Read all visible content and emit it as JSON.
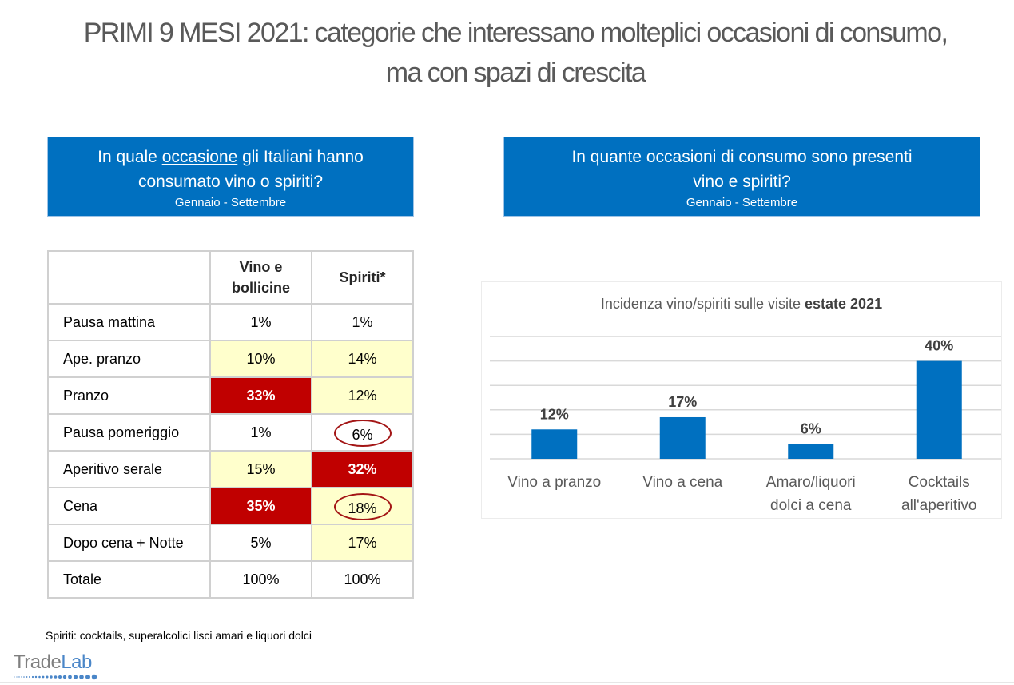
{
  "page": {
    "title_line1": "PRIMI 9 MESI 2021: categorie che interessano molteplici occasioni di consumo,",
    "title_line2": "ma con spazi di crescita"
  },
  "left_panel": {
    "question_pre": "In quale ",
    "question_underlined": "occasione",
    "question_post": " gli Italiani hanno",
    "question_line2": "consumato vino o spiriti?",
    "period": "Gennaio - Settembre"
  },
  "right_panel": {
    "question_line1": "In quante occasioni di consumo sono presenti",
    "question_line2": "vino e spiriti?",
    "period": "Gennaio - Settembre"
  },
  "table": {
    "headers": [
      "",
      "Vino e bollicine",
      "Spiriti*"
    ],
    "header_wine_line1": "Vino e",
    "header_wine_line2": "bollicine",
    "header_spirits": "Spiriti*",
    "rows": [
      {
        "label": "Pausa mattina",
        "wine": "1%",
        "spirits": "1%",
        "wine_level": "none",
        "spirits_level": "none",
        "spirits_circled": false
      },
      {
        "label": "Ape. pranzo",
        "wine": "10%",
        "spirits": "14%",
        "wine_level": "mid",
        "spirits_level": "mid",
        "spirits_circled": false
      },
      {
        "label": "Pranzo",
        "wine": "33%",
        "spirits": "12%",
        "wine_level": "high",
        "spirits_level": "mid",
        "spirits_circled": false
      },
      {
        "label": "Pausa pomeriggio",
        "wine": "1%",
        "spirits": "6%",
        "wine_level": "none",
        "spirits_level": "none",
        "spirits_circled": true
      },
      {
        "label": "Aperitivo serale",
        "wine": "15%",
        "spirits": "32%",
        "wine_level": "mid",
        "spirits_level": "high",
        "spirits_circled": false
      },
      {
        "label": "Cena",
        "wine": "35%",
        "spirits": "18%",
        "wine_level": "high",
        "spirits_level": "mid",
        "spirits_circled": true
      },
      {
        "label": "Dopo cena + Notte",
        "wine": "5%",
        "spirits": "17%",
        "wine_level": "none",
        "spirits_level": "mid",
        "spirits_circled": false
      },
      {
        "label": "Totale",
        "wine": "100%",
        "spirits": "100%",
        "wine_level": "none",
        "spirits_level": "none",
        "spirits_circled": false
      }
    ],
    "colors": {
      "high": "#c00000",
      "mid": "#ffffcc",
      "circle": "#a31515"
    }
  },
  "footnote": "Spiriti: cocktails, superalcolici lisci amari e liquori dolci",
  "logo": {
    "part1": "Trade",
    "part2": "Lab"
  },
  "chart_data": {
    "type": "bar",
    "title_regular": "Incidenza vino/spiriti sulle visite ",
    "title_bold": "estate 2021",
    "categories": [
      "Vino a pranzo",
      "Vino a cena",
      "Amaro/liquori dolci a cena",
      "Cocktails all'aperitivo"
    ],
    "category_lines": [
      [
        "Vino a pranzo"
      ],
      [
        "Vino a cena"
      ],
      [
        "Amaro/liquori",
        "dolci a cena"
      ],
      [
        "Cocktails",
        "all'aperitivo"
      ]
    ],
    "values": [
      12,
      17,
      6,
      40
    ],
    "data_labels": [
      "12%",
      "17%",
      "6%",
      "40%"
    ],
    "ylim": [
      0,
      50
    ],
    "gridlines": [
      0,
      10,
      20,
      30,
      40,
      50
    ],
    "grid": true,
    "bar_color": "#0070c0",
    "xlabel": "",
    "ylabel": "",
    "legend": "none"
  }
}
